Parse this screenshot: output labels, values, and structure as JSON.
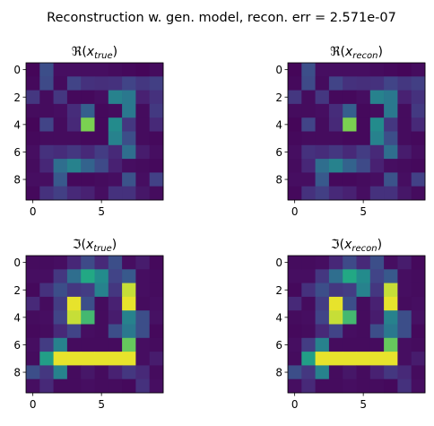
{
  "figure": {
    "suptitle": "Reconstruction w. gen. model, recon. err = 2.571e-07"
  },
  "chart_data": [
    {
      "type": "heatmap",
      "title": "ℜ(x_true)",
      "title_base": "ℜ(",
      "title_var": "x",
      "title_sub": "true",
      "title_close": ")",
      "xticks": [
        0,
        5
      ],
      "yticks": [
        0,
        2,
        4,
        6,
        8
      ],
      "vmin": 0,
      "vmax": 1,
      "colormap": "viridis",
      "values": [
        [
          0.02,
          0.3,
          0.05,
          0.05,
          0.05,
          0.05,
          0.04,
          0.03,
          0.02,
          0.04
        ],
        [
          0.03,
          0.28,
          0.04,
          0.25,
          0.18,
          0.17,
          0.18,
          0.25,
          0.2,
          0.23
        ],
        [
          0.2,
          0.04,
          0.2,
          0.03,
          0.03,
          0.05,
          0.55,
          0.5,
          0.12,
          0.18
        ],
        [
          0.04,
          0.04,
          0.05,
          0.16,
          0.38,
          0.03,
          0.04,
          0.5,
          0.04,
          0.21
        ],
        [
          0.02,
          0.25,
          0.04,
          0.15,
          0.88,
          0.03,
          0.6,
          0.2,
          0.04,
          0.15
        ],
        [
          0.03,
          0.04,
          0.04,
          0.04,
          0.03,
          0.03,
          0.55,
          0.3,
          0.04,
          0.03
        ],
        [
          0.05,
          0.18,
          0.16,
          0.2,
          0.15,
          0.22,
          0.15,
          0.45,
          0.1,
          0.05
        ],
        [
          0.04,
          0.14,
          0.45,
          0.55,
          0.4,
          0.28,
          0.12,
          0.05,
          0.04,
          0.03
        ],
        [
          0.05,
          0.05,
          0.35,
          0.03,
          0.03,
          0.04,
          0.05,
          0.32,
          0.05,
          0.24
        ],
        [
          0.03,
          0.18,
          0.23,
          0.15,
          0.12,
          0.05,
          0.18,
          0.18,
          0.08,
          0.04
        ]
      ]
    },
    {
      "type": "heatmap",
      "title": "ℜ(x_recon)",
      "title_base": "ℜ(",
      "title_var": "x",
      "title_sub": "recon",
      "title_close": ")",
      "xticks": [
        0,
        5
      ],
      "yticks": [
        0,
        2,
        4,
        6,
        8
      ],
      "vmin": 0,
      "vmax": 1,
      "colormap": "viridis",
      "values": [
        [
          0.02,
          0.3,
          0.05,
          0.05,
          0.05,
          0.05,
          0.04,
          0.03,
          0.02,
          0.04
        ],
        [
          0.03,
          0.28,
          0.04,
          0.25,
          0.18,
          0.17,
          0.18,
          0.25,
          0.2,
          0.23
        ],
        [
          0.2,
          0.04,
          0.2,
          0.03,
          0.03,
          0.05,
          0.55,
          0.5,
          0.12,
          0.18
        ],
        [
          0.04,
          0.04,
          0.05,
          0.16,
          0.38,
          0.03,
          0.04,
          0.5,
          0.04,
          0.21
        ],
        [
          0.02,
          0.25,
          0.04,
          0.15,
          0.88,
          0.03,
          0.6,
          0.2,
          0.04,
          0.15
        ],
        [
          0.03,
          0.04,
          0.04,
          0.04,
          0.03,
          0.03,
          0.55,
          0.3,
          0.04,
          0.03
        ],
        [
          0.05,
          0.18,
          0.16,
          0.2,
          0.15,
          0.22,
          0.15,
          0.45,
          0.1,
          0.05
        ],
        [
          0.04,
          0.14,
          0.45,
          0.55,
          0.4,
          0.28,
          0.12,
          0.05,
          0.04,
          0.03
        ],
        [
          0.05,
          0.05,
          0.35,
          0.03,
          0.03,
          0.04,
          0.05,
          0.32,
          0.05,
          0.24
        ],
        [
          0.03,
          0.18,
          0.23,
          0.15,
          0.12,
          0.05,
          0.18,
          0.18,
          0.08,
          0.04
        ]
      ]
    },
    {
      "type": "heatmap",
      "title": "ℑ(x_true)",
      "title_base": "ℑ(",
      "title_var": "x",
      "title_sub": "true",
      "title_close": ")",
      "xticks": [
        0,
        5
      ],
      "yticks": [
        0,
        2,
        4,
        6,
        8
      ],
      "vmin": 0,
      "vmax": 1,
      "colormap": "viridis",
      "values": [
        [
          0.04,
          0.04,
          0.05,
          0.14,
          0.28,
          0.15,
          0.3,
          0.05,
          0.1,
          0.03
        ],
        [
          0.05,
          0.05,
          0.2,
          0.45,
          0.75,
          0.6,
          0.25,
          0.35,
          0.05,
          0.04
        ],
        [
          0.03,
          0.18,
          0.3,
          0.2,
          0.22,
          0.55,
          0.2,
          0.95,
          0.05,
          0.04
        ],
        [
          0.15,
          0.04,
          0.22,
          0.98,
          0.3,
          0.04,
          0.12,
          0.98,
          0.04,
          0.05
        ],
        [
          0.04,
          0.05,
          0.25,
          0.95,
          0.8,
          0.04,
          0.1,
          0.55,
          0.3,
          0.06
        ],
        [
          0.03,
          0.04,
          0.15,
          0.25,
          0.05,
          0.04,
          0.3,
          0.5,
          0.3,
          0.03
        ],
        [
          0.05,
          0.22,
          0.55,
          0.04,
          0.04,
          0.04,
          0.04,
          0.85,
          0.05,
          0.04
        ],
        [
          0.04,
          0.7,
          0.98,
          0.98,
          0.98,
          0.98,
          0.98,
          0.98,
          0.05,
          0.1
        ],
        [
          0.3,
          0.2,
          0.55,
          0.04,
          0.08,
          0.04,
          0.12,
          0.2,
          0.15,
          0.04
        ],
        [
          0.05,
          0.15,
          0.04,
          0.04,
          0.05,
          0.04,
          0.04,
          0.03,
          0.18,
          0.05
        ]
      ]
    },
    {
      "type": "heatmap",
      "title": "ℑ(x_recon)",
      "title_base": "ℑ(",
      "title_var": "x",
      "title_sub": "recon",
      "title_close": ")",
      "xticks": [
        0,
        5
      ],
      "yticks": [
        0,
        2,
        4,
        6,
        8
      ],
      "vmin": 0,
      "vmax": 1,
      "colormap": "viridis",
      "values": [
        [
          0.04,
          0.04,
          0.05,
          0.14,
          0.28,
          0.15,
          0.3,
          0.05,
          0.1,
          0.03
        ],
        [
          0.05,
          0.05,
          0.2,
          0.45,
          0.75,
          0.6,
          0.25,
          0.35,
          0.05,
          0.04
        ],
        [
          0.03,
          0.18,
          0.3,
          0.2,
          0.22,
          0.55,
          0.2,
          0.95,
          0.05,
          0.04
        ],
        [
          0.15,
          0.04,
          0.22,
          0.98,
          0.3,
          0.04,
          0.12,
          0.98,
          0.04,
          0.05
        ],
        [
          0.04,
          0.05,
          0.25,
          0.95,
          0.8,
          0.04,
          0.1,
          0.55,
          0.3,
          0.06
        ],
        [
          0.03,
          0.04,
          0.15,
          0.25,
          0.05,
          0.04,
          0.3,
          0.5,
          0.3,
          0.03
        ],
        [
          0.05,
          0.22,
          0.55,
          0.04,
          0.04,
          0.04,
          0.04,
          0.85,
          0.05,
          0.04
        ],
        [
          0.04,
          0.7,
          0.98,
          0.98,
          0.98,
          0.98,
          0.98,
          0.98,
          0.05,
          0.1
        ],
        [
          0.3,
          0.2,
          0.55,
          0.04,
          0.08,
          0.04,
          0.12,
          0.2,
          0.15,
          0.04
        ],
        [
          0.05,
          0.15,
          0.04,
          0.04,
          0.05,
          0.04,
          0.04,
          0.03,
          0.18,
          0.05
        ]
      ]
    }
  ]
}
